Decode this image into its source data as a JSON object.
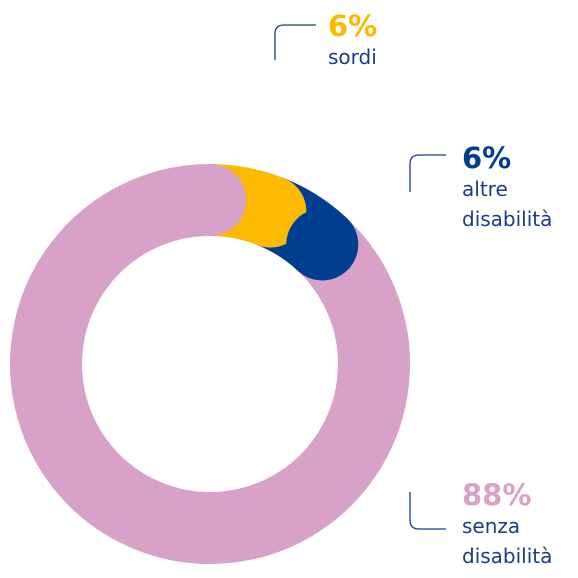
{
  "chart_data": {
    "type": "donut",
    "categories": [
      "sordi",
      "altre disabilità",
      "senza disabilità"
    ],
    "values": [
      6,
      6,
      88
    ],
    "value_labels": [
      "6%",
      "6%",
      "88%"
    ],
    "colors": [
      "#fbba00",
      "#003f8f",
      "#d7a1c8"
    ]
  }
}
